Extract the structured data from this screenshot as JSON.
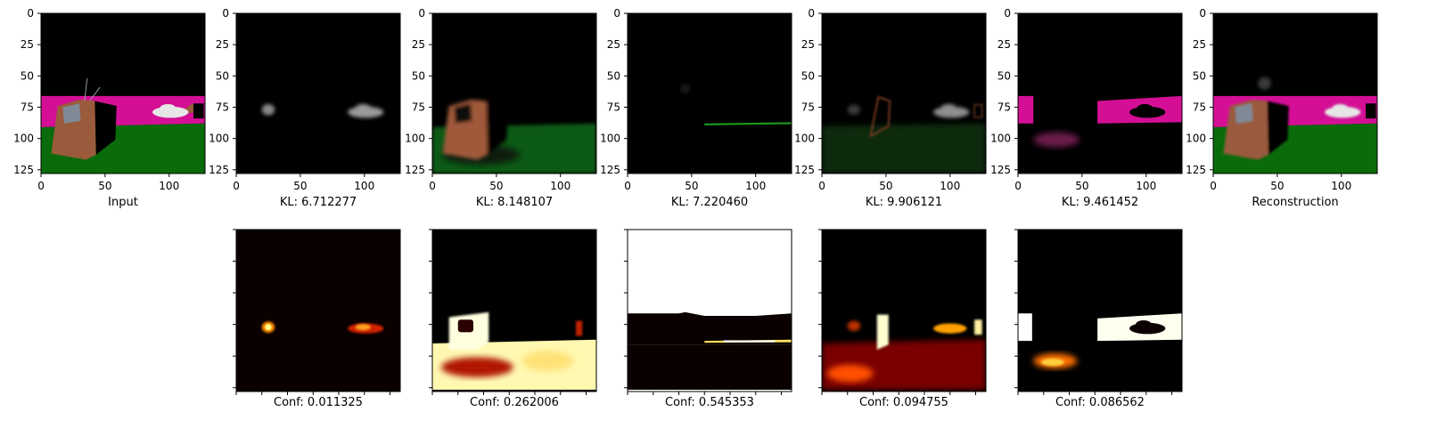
{
  "chart_data": {
    "type": "image-grid",
    "top_row": {
      "images": [
        {
          "kind": "input",
          "label": "Input"
        },
        {
          "kind": "slot-object",
          "label": "KL: 6.712277"
        },
        {
          "kind": "slot-tv-floor",
          "label": "KL: 8.148107"
        },
        {
          "kind": "slot-horizon",
          "label": "KL: 7.220460"
        },
        {
          "kind": "slot-outline",
          "label": "KL: 9.906121"
        },
        {
          "kind": "slot-wall",
          "label": "KL: 9.461452"
        },
        {
          "kind": "reconstruction",
          "label": "Reconstruction"
        }
      ],
      "axis": {
        "xlim": [
          0,
          128
        ],
        "ylim": [
          128,
          0
        ],
        "xticks": [
          0,
          50,
          100
        ],
        "yticks": [
          0,
          25,
          50,
          75,
          100,
          125
        ]
      }
    },
    "bottom_row": {
      "colormap": "hot",
      "images": [
        {
          "slot": 1,
          "label": "Conf: 0.011325"
        },
        {
          "slot": 2,
          "label": "Conf: 0.262006"
        },
        {
          "slot": 3,
          "label": "Conf: 0.545353"
        },
        {
          "slot": 4,
          "label": "Conf: 0.094755"
        },
        {
          "slot": 5,
          "label": "Conf: 0.086562"
        }
      ]
    }
  },
  "colors": {
    "sky": "#000000",
    "wall": "#d40f96",
    "floor": "#0a6b0a",
    "tv_body": "#9a5a3c",
    "tv_screen": "#7f8a96",
    "car": "#e6e6e6"
  }
}
